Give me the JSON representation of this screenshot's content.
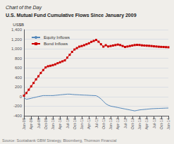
{
  "chart_data": {
    "type": "line",
    "subtitle": "Chart of the Day",
    "title": "U.S. Mutual Fund Cumulative Flows Since January 2009",
    "ylabel": "US$B",
    "annotations": [
      "Source: Scotiabank GBM Strategy, Bloomberg, Thomson Financial"
    ],
    "categories": [
      "Jan-09",
      null,
      null,
      "Apr-09",
      null,
      null,
      "Jul-09",
      null,
      null,
      "Oct-09",
      null,
      null,
      "Jan-10",
      null,
      null,
      "Apr-10",
      null,
      null,
      "Jul-10",
      null,
      null,
      "Oct-10",
      null,
      null,
      "Jan-11",
      null,
      null,
      "Apr-11",
      null,
      null,
      "Jul-11",
      null,
      null,
      "Oct-11",
      null,
      null,
      "Jan-12",
      null,
      null,
      "Apr-12",
      null,
      null,
      "Jul-12",
      null,
      null,
      "Oct-12",
      null,
      null,
      "Jan-13",
      null,
      null,
      "Apr-13",
      null,
      null,
      "Jul-13",
      null,
      null,
      "Oct-13",
      null,
      null,
      "Jan-14"
    ],
    "series": [
      {
        "name": "Equity Inflows",
        "color": "#5588bb",
        "marker": "none",
        "values": [
          -25,
          -55,
          -45,
          -35,
          -22,
          -12,
          2,
          12,
          22,
          22,
          22,
          22,
          22,
          27,
          32,
          37,
          42,
          47,
          52,
          52,
          47,
          42,
          40,
          37,
          34,
          32,
          30,
          27,
          24,
          22,
          20,
          -8,
          -48,
          -98,
          -148,
          -178,
          -198,
          -208,
          -218,
          -228,
          -238,
          -248,
          -258,
          -268,
          -278,
          -288,
          -298,
          -288,
          -278,
          -273,
          -268,
          -263,
          -258,
          -253,
          -250,
          -248,
          -246,
          -244,
          -242,
          -240,
          -238
        ]
      },
      {
        "name": "Bond Inflows",
        "color": "#cc0000",
        "marker": "square",
        "values": [
          20,
          75,
          145,
          215,
          285,
          360,
          425,
          495,
          555,
          610,
          635,
          645,
          658,
          675,
          698,
          718,
          738,
          758,
          815,
          875,
          935,
          985,
          1015,
          1045,
          1058,
          1075,
          1095,
          1115,
          1145,
          1165,
          1185,
          1148,
          1095,
          1045,
          1075,
          1048,
          1058,
          1068,
          1078,
          1088,
          1078,
          1058,
          1038,
          1048,
          1058,
          1068,
          1078,
          1082,
          1080,
          1072,
          1068,
          1065,
          1062,
          1058,
          1052,
          1048,
          1043,
          1040,
          1038,
          1035,
          1032
        ]
      }
    ],
    "ylim": [
      -400,
      1400
    ],
    "yticks": [
      -400,
      -200,
      0,
      200,
      400,
      600,
      800,
      {
        "value": 1000,
        "label": "1,000"
      },
      {
        "value": 1200,
        "label": "1,200"
      },
      {
        "value": 1400,
        "label": "1,400"
      }
    ],
    "grid": true,
    "legend": "upper left"
  }
}
